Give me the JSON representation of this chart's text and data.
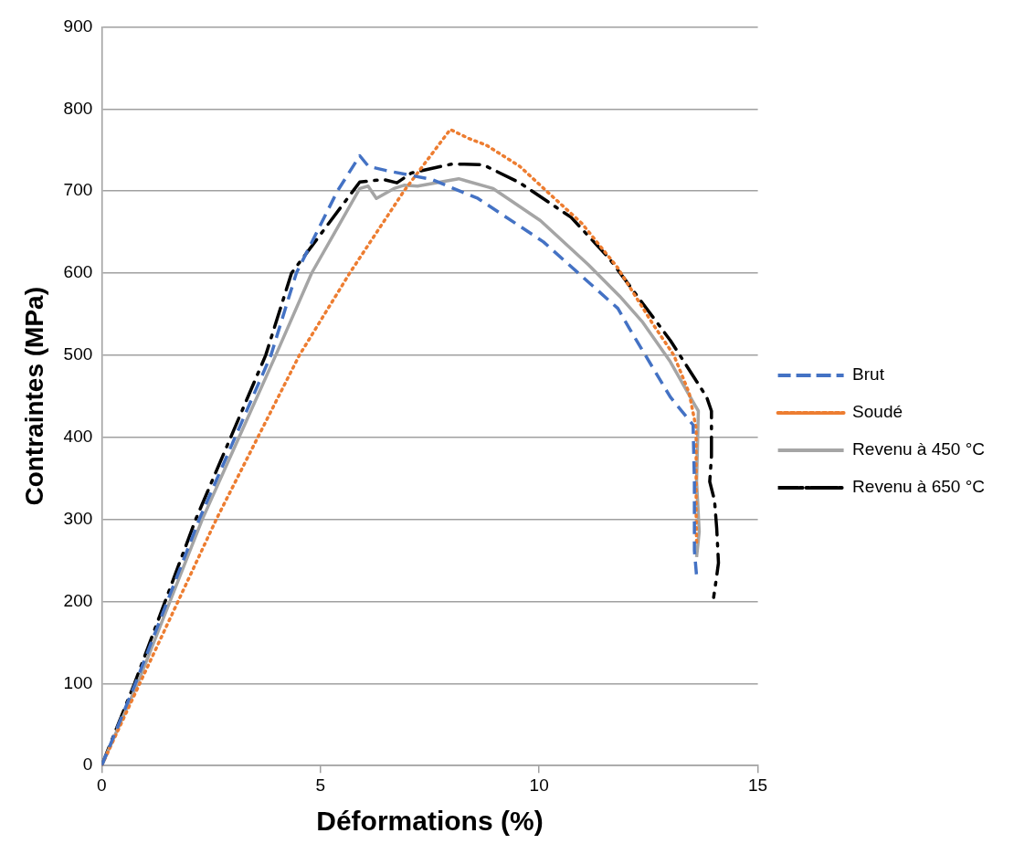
{
  "chart_data": {
    "type": "line",
    "xlabel": "Déformations (%)",
    "ylabel": "Contraintes (MPa)",
    "xlim": [
      0,
      15
    ],
    "xticks": [
      0,
      5,
      10,
      15
    ],
    "ylim": [
      0,
      900
    ],
    "yticks": [
      0,
      100,
      200,
      300,
      400,
      500,
      600,
      700,
      800,
      900
    ],
    "grid": "y",
    "legend": "right",
    "marker": "none",
    "series": [
      {
        "name": "Brut",
        "color": "#4472c4",
        "line_style": "dashed",
        "x": [
          0,
          0.77,
          2.23,
          3.87,
          4.45,
          5.39,
          5.9,
          6.1,
          6.5,
          7.55,
          8.6,
          10.1,
          11.8,
          12.07,
          13.0,
          13.52,
          13.55,
          13.55,
          13.6
        ],
        "values": [
          0,
          100,
          300,
          500,
          600,
          700,
          743,
          730,
          725,
          714,
          691,
          638,
          557,
          532,
          449,
          415,
          346,
          262,
          231
        ]
      },
      {
        "name": "Soudé",
        "color": "#ed7d31",
        "line_style": "dotted",
        "x": [
          0,
          0.87,
          2.62,
          4.52,
          5.67,
          6.91,
          7.97,
          8.39,
          8.79,
          9.56,
          10.19,
          10.97,
          11.79,
          12.6,
          13.08,
          13.43,
          13.59,
          13.59,
          13.6
        ],
        "values": [
          0,
          100,
          300,
          500,
          600,
          700,
          775,
          764,
          756,
          730,
          699,
          661,
          607,
          538,
          500,
          454,
          411,
          308,
          270
        ]
      },
      {
        "name": "Revenu à 450 °C",
        "color": "#a5a5a5",
        "line_style": "solid",
        "x": [
          0,
          0.82,
          2.3,
          3.98,
          4.8,
          5.9,
          6.09,
          6.28,
          6.68,
          6.91,
          7.22,
          8.16,
          8.95,
          10.03,
          11.13,
          11.84,
          12.37,
          13.0,
          13.52,
          13.64,
          13.6,
          13.66,
          13.6
        ],
        "values": [
          0,
          100,
          300,
          500,
          600,
          703,
          706,
          691,
          703,
          707,
          706,
          715,
          703,
          664,
          610,
          572,
          540,
          492,
          443,
          432,
          346,
          285,
          254
        ]
      },
      {
        "name": "Revenu à 650 °C",
        "color": "#000000",
        "line_style": "dashdot",
        "x": [
          0,
          0.75,
          2.15,
          3.75,
          4.34,
          5.9,
          6.44,
          6.75,
          7.08,
          8.02,
          8.72,
          9.56,
          10.73,
          11.6,
          13.0,
          13.83,
          13.94,
          13.94,
          13.9,
          14.01,
          14.06,
          14.1,
          14.06,
          13.99
        ],
        "values": [
          0,
          100,
          300,
          500,
          600,
          711,
          714,
          710,
          722,
          733,
          732,
          710,
          668,
          618,
          518,
          449,
          432,
          377,
          346,
          323,
          289,
          247,
          231,
          205
        ]
      }
    ]
  }
}
